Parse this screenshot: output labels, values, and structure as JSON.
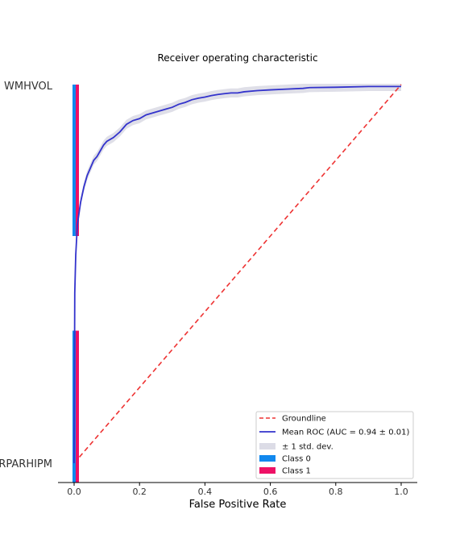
{
  "chart_data": {
    "type": "line",
    "title": "Receiver operating characteristic",
    "xlabel": "False Positive Rate",
    "ylabel": "",
    "xlim": [
      -0.05,
      1.05
    ],
    "ylim": [
      0,
      1
    ],
    "x_ticks": [
      "0.0",
      "0.2",
      "0.4",
      "0.6",
      "0.8",
      "1.0"
    ],
    "y_row_labels": [
      "WMHVOL",
      "RPARHIPM"
    ],
    "colors": {
      "groundline": "#ee3333",
      "mean_roc": "#3333cc",
      "std_band": "#dcdce6",
      "class0": "#1188ee",
      "class1": "#ee1166"
    },
    "series": [
      {
        "name": "Groundline",
        "style": "dashed",
        "x": [
          0.0,
          1.0
        ],
        "y": [
          0.0,
          1.0
        ]
      },
      {
        "name": "Mean ROC (AUC = 0.94 ± 0.01)",
        "x": [
          0.0,
          0.002,
          0.005,
          0.01,
          0.02,
          0.03,
          0.04,
          0.05,
          0.06,
          0.07,
          0.08,
          0.09,
          0.1,
          0.12,
          0.14,
          0.16,
          0.18,
          0.2,
          0.22,
          0.24,
          0.26,
          0.28,
          0.3,
          0.32,
          0.34,
          0.36,
          0.38,
          0.4,
          0.42,
          0.44,
          0.46,
          0.48,
          0.5,
          0.52,
          0.56,
          0.6,
          0.65,
          0.7,
          0.72,
          0.8,
          0.9,
          1.0
        ],
        "y": [
          0.0,
          0.45,
          0.55,
          0.63,
          0.69,
          0.73,
          0.76,
          0.78,
          0.8,
          0.81,
          0.825,
          0.84,
          0.85,
          0.86,
          0.875,
          0.895,
          0.905,
          0.91,
          0.92,
          0.925,
          0.93,
          0.935,
          0.94,
          0.948,
          0.953,
          0.96,
          0.964,
          0.967,
          0.971,
          0.974,
          0.976,
          0.978,
          0.978,
          0.981,
          0.984,
          0.986,
          0.988,
          0.99,
          0.992,
          0.993,
          0.995,
          0.995
        ]
      },
      {
        "name": "± 1 std. dev.",
        "type": "band",
        "std": 0.012
      }
    ],
    "class_bars": [
      {
        "row": "WMHVOL",
        "class0_x": 0.003,
        "class1_x": 0.012,
        "y_from": 0.6,
        "y_to": 1.0
      },
      {
        "row": "RPARHIPM",
        "class0_x": 0.003,
        "class1_x": 0.012,
        "y_from": -0.05,
        "y_to": 0.35
      }
    ],
    "legend": {
      "placement": "lower right",
      "entries": [
        {
          "label": "Groundline",
          "kind": "dashed",
          "color": "#ee3333"
        },
        {
          "label": "Mean ROC (AUC = 0.94 ± 0.01)",
          "kind": "line",
          "color": "#3333cc"
        },
        {
          "label": "± 1 std. dev.",
          "kind": "patch",
          "color": "#dcdce6"
        },
        {
          "label": "Class 0",
          "kind": "patch",
          "color": "#1188ee"
        },
        {
          "label": "Class 1",
          "kind": "patch",
          "color": "#ee1166"
        }
      ]
    }
  }
}
